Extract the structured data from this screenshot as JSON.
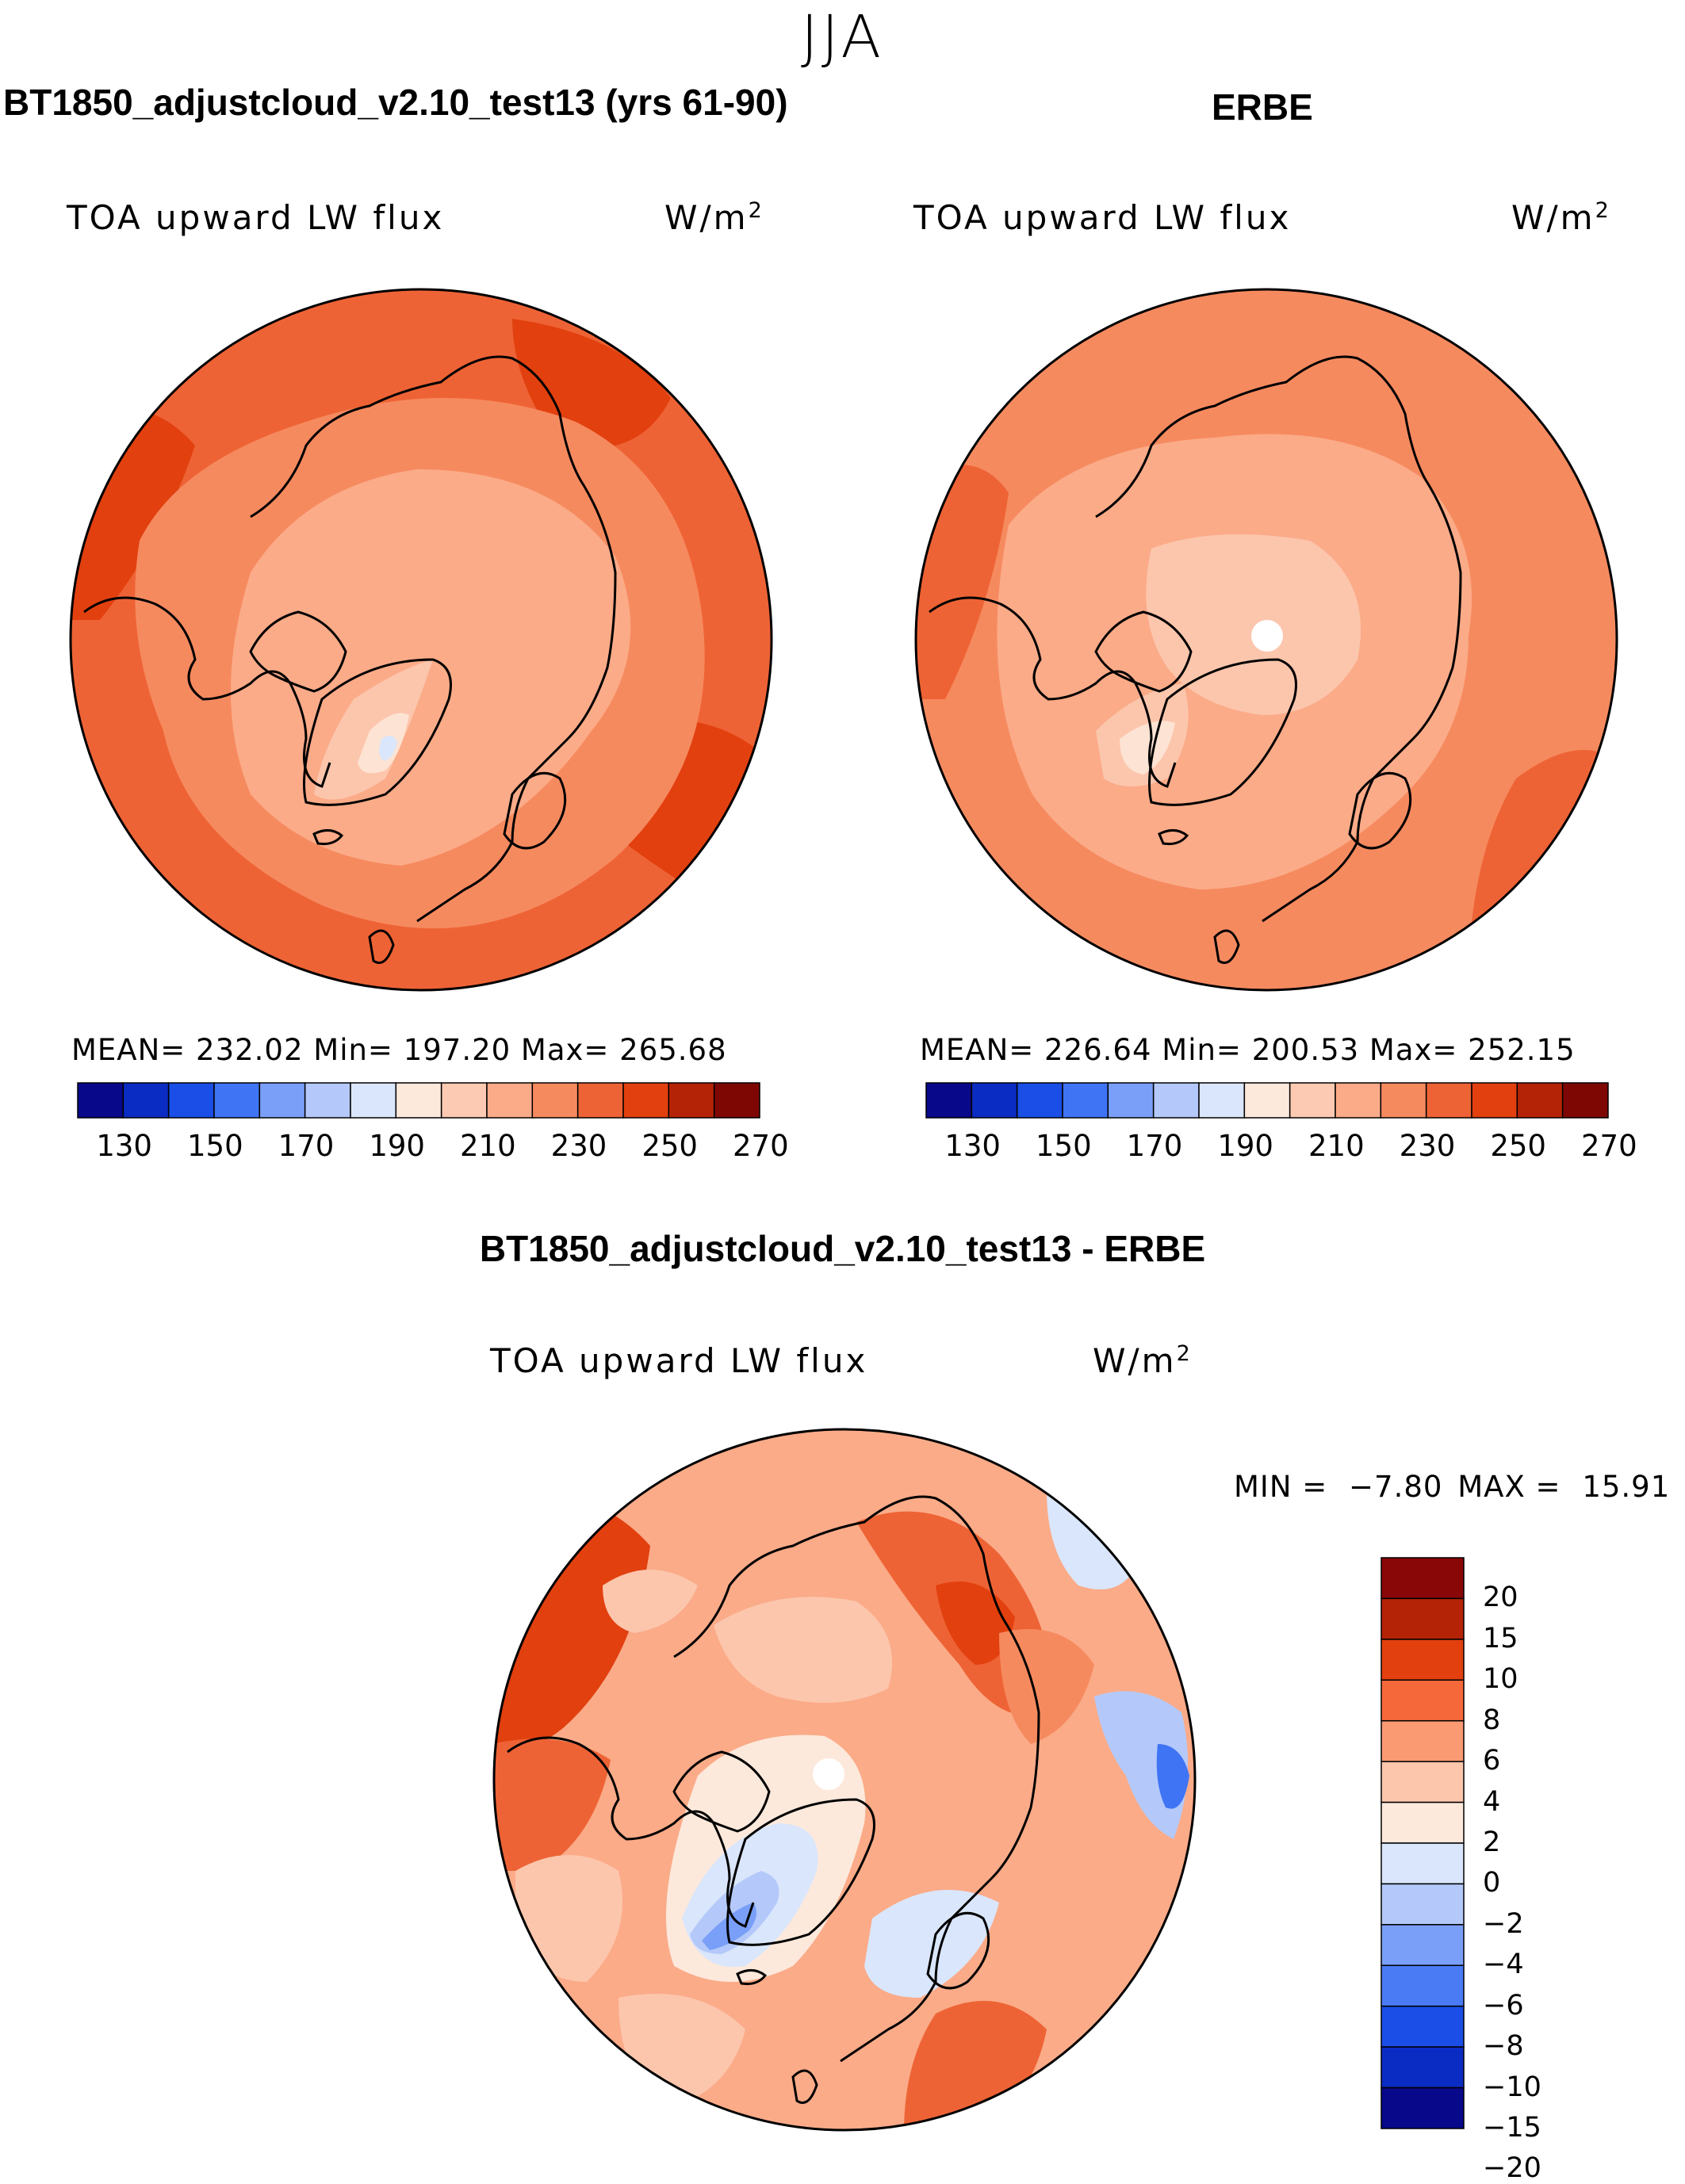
{
  "season": "JJA",
  "left_panel": {
    "title": "BT1850_adjustcloud_v2.10_test13 (yrs 61-90)",
    "variable": "TOA upward LW flux",
    "units_base": "W/m",
    "units_exp": "2",
    "stats": "MEAN= 232.02   Min= 197.20   Max= 265.68",
    "palette": [
      "#08088a",
      "#0b2cc2",
      "#1a4ee6",
      "#3f74f5",
      "#7a9ff8",
      "#b4c9fa",
      "#dae6fb",
      "#fde9dc",
      "#fccab2",
      "#fbab88",
      "#f68a5f",
      "#ee6335",
      "#e2400f",
      "#b52306",
      "#7e0704"
    ],
    "ticks": [
      "130",
      "150",
      "170",
      "190",
      "210",
      "230",
      "250",
      "270"
    ]
  },
  "right_panel": {
    "title": "ERBE",
    "variable": "TOA upward LW flux",
    "units_base": "W/m",
    "units_exp": "2",
    "stats": "MEAN= 226.64   Min= 200.53   Max= 252.15",
    "palette": [
      "#08088a",
      "#0b2cc2",
      "#1a4ee6",
      "#3f74f5",
      "#7a9ff8",
      "#b4c9fa",
      "#dae6fb",
      "#fde9dc",
      "#fccab2",
      "#fbab88",
      "#f68a5f",
      "#ee6335",
      "#e2400f",
      "#b52306",
      "#7e0704"
    ],
    "ticks": [
      "130",
      "150",
      "170",
      "190",
      "210",
      "230",
      "250",
      "270"
    ]
  },
  "diff_panel": {
    "title": "BT1850_adjustcloud_v2.10_test13 - ERBE",
    "variable": "TOA upward LW flux",
    "units_base": "W/m",
    "units_exp": "2",
    "min_label": "MIN =",
    "min_value": "−7.80",
    "max_label": "MAX =",
    "max_value": "15.91",
    "colorbar_colors_top_to_bottom": [
      "#8a0707",
      "#b52306",
      "#e2400f",
      "#f4683a",
      "#fa9a73",
      "#fcc6ad",
      "#fde9dc",
      "#dae6fb",
      "#b4c9fa",
      "#7a9ff8",
      "#4a7bf5",
      "#1a4ee6",
      "#0b2cc2",
      "#08088a"
    ],
    "colorbar_labels_top_to_bottom": [
      "20",
      "15",
      "10",
      "8",
      "6",
      "4",
      "2",
      "0",
      "−2",
      "−4",
      "−6",
      "−8",
      "−10",
      "−15",
      "−20"
    ]
  },
  "map_colors": {
    "c205": "#fde3d3",
    "c215": "#fcc6ad",
    "c225": "#fbab88",
    "c235": "#f68a5f",
    "c245": "#ee6335",
    "c255": "#e2400f",
    "c190": "#dae6fb",
    "d0": "#fde9dc",
    "d2": "#fcc6ad",
    "d4": "#fbab88",
    "d6": "#f68a5f",
    "d8": "#ee6335",
    "d10": "#e2400f",
    "dneg2": "#dae6fb",
    "dneg4": "#b4c9fa",
    "dneg6": "#7a9ff8",
    "dneg8": "#3f74f5"
  }
}
